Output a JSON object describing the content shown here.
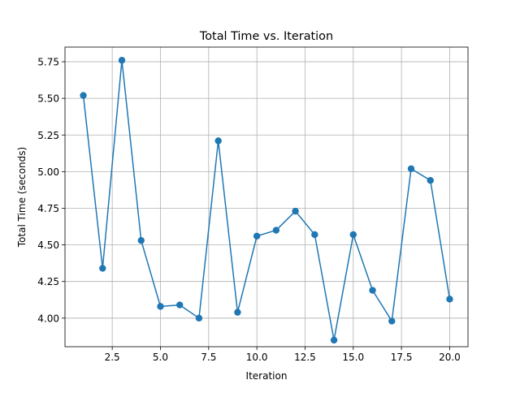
{
  "chart_data": {
    "type": "line",
    "title": "Total Time vs. Iteration",
    "xlabel": "Iteration",
    "ylabel": "Total Time (seconds)",
    "xlim": [
      0.05,
      20.95
    ],
    "ylim": [
      3.805,
      5.85
    ],
    "xticks": [
      2.5,
      5.0,
      7.5,
      10.0,
      12.5,
      15.0,
      17.5,
      20.0
    ],
    "xtick_labels": [
      "2.5",
      "5.0",
      "7.5",
      "10.0",
      "12.5",
      "15.0",
      "17.5",
      "20.0"
    ],
    "yticks": [
      4.0,
      4.25,
      4.5,
      4.75,
      5.0,
      5.25,
      5.5,
      5.75
    ],
    "ytick_labels": [
      "4.00",
      "4.25",
      "4.50",
      "4.75",
      "5.00",
      "5.25",
      "5.50",
      "5.75"
    ],
    "grid": true,
    "series": [
      {
        "color": "#1f77b4",
        "marker": "circle",
        "x": [
          1,
          2,
          3,
          4,
          5,
          6,
          7,
          8,
          9,
          10,
          11,
          12,
          13,
          14,
          15,
          16,
          17,
          18,
          19,
          20
        ],
        "y": [
          5.52,
          4.34,
          5.76,
          4.53,
          4.08,
          4.09,
          4.0,
          5.21,
          4.04,
          4.56,
          4.6,
          4.73,
          4.57,
          3.85,
          4.57,
          4.19,
          3.98,
          5.02,
          4.94,
          4.13
        ]
      }
    ]
  }
}
